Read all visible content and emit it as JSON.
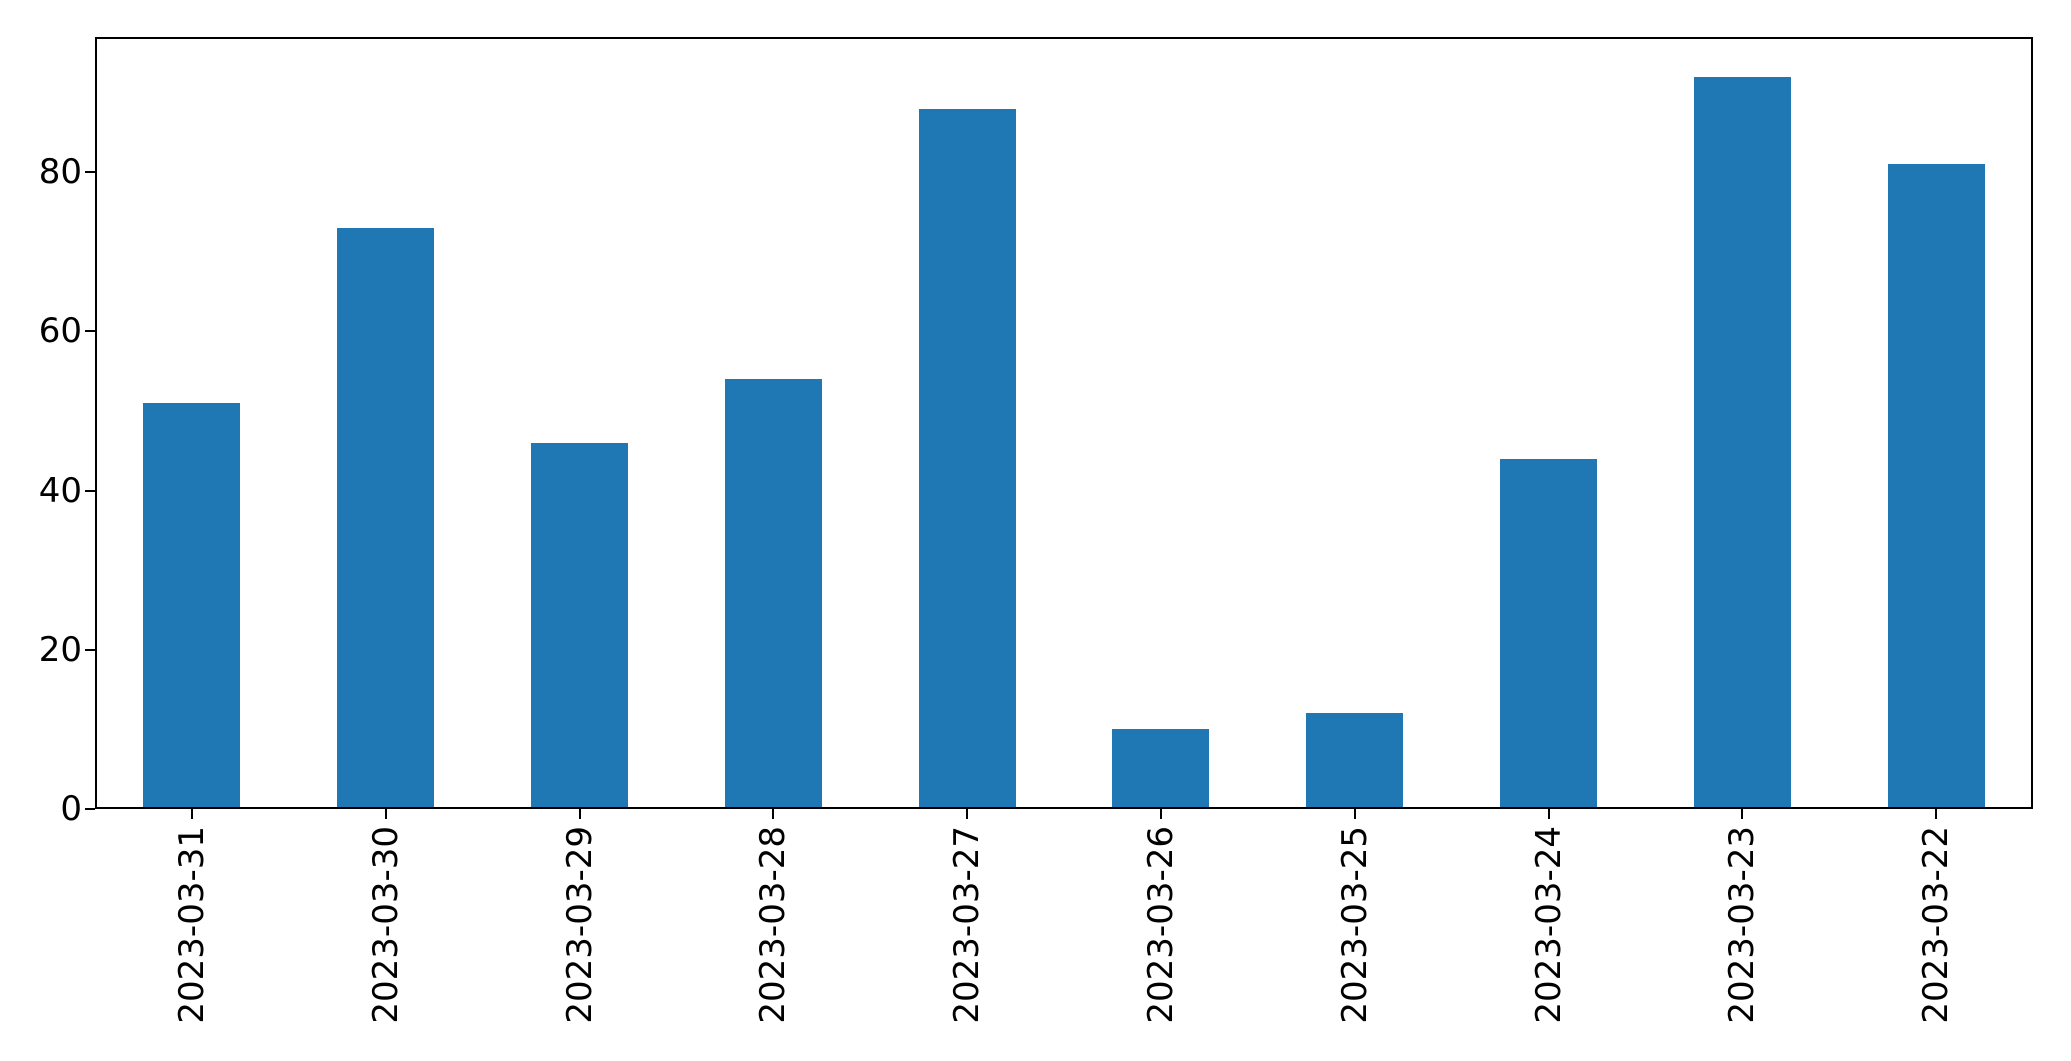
{
  "chart_data": {
    "type": "bar",
    "categories": [
      "2023-03-31",
      "2023-03-30",
      "2023-03-29",
      "2023-03-28",
      "2023-03-27",
      "2023-03-26",
      "2023-03-25",
      "2023-03-24",
      "2023-03-23",
      "2023-03-22"
    ],
    "values": [
      51,
      73,
      46,
      54,
      88,
      10,
      12,
      44,
      92,
      81
    ],
    "title": "",
    "xlabel": "",
    "ylabel": "",
    "ylim": [
      0,
      97
    ],
    "yticks": [
      0,
      20,
      40,
      60,
      80
    ],
    "ytick_labels": [
      "0",
      "20",
      "40",
      "60",
      "80"
    ],
    "x_tick_rotation_deg": 90,
    "grid": false,
    "legend": null,
    "bar_relative_width": 0.5,
    "bar_color": "#1f77b4",
    "spine_color": "#000000",
    "tick_color": "#000000",
    "text_color": "#000000",
    "background_color": "#ffffff"
  }
}
